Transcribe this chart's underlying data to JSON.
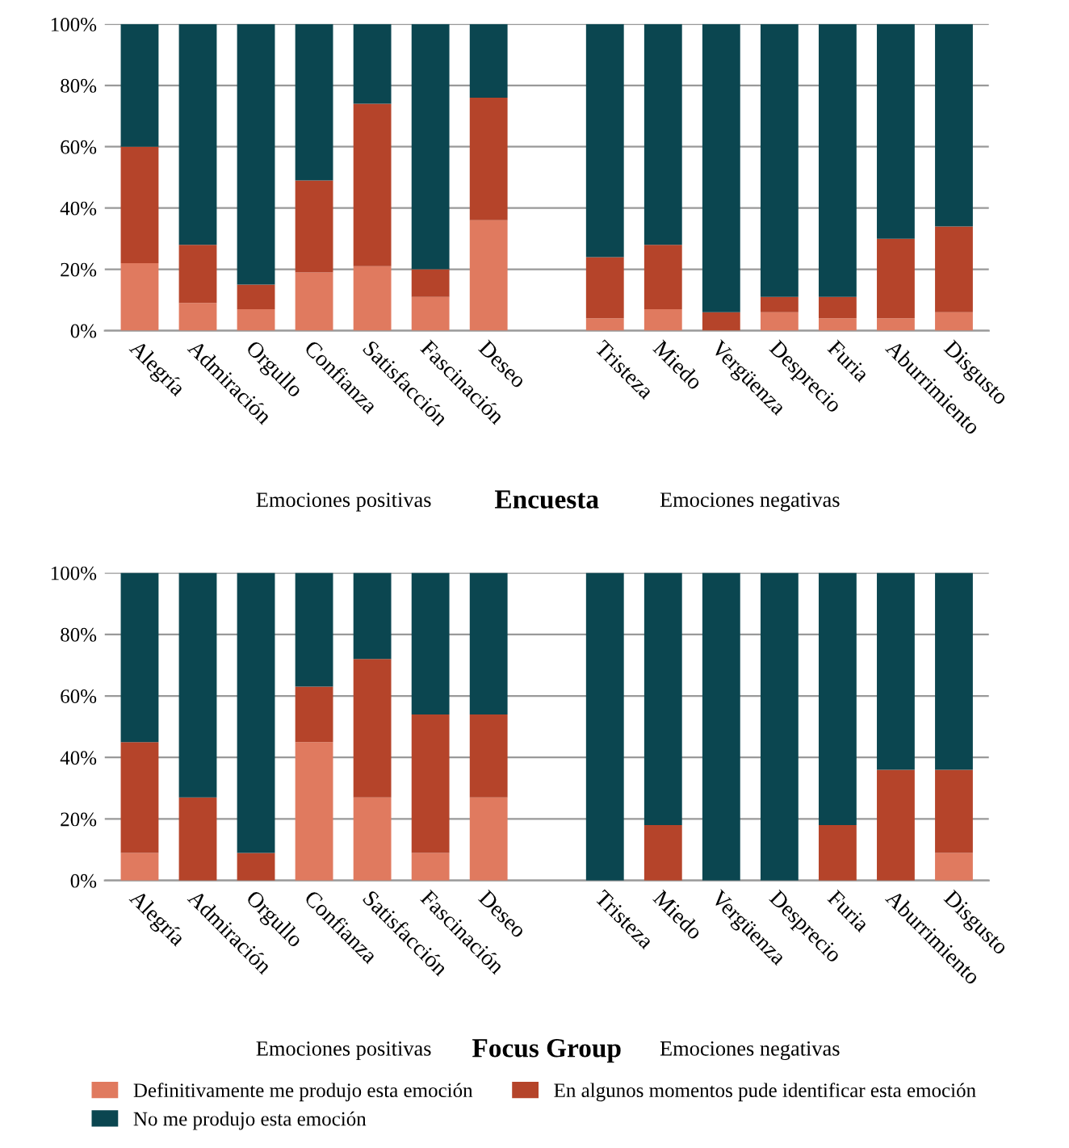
{
  "chart_data": [
    {
      "type": "bar",
      "stacked": true,
      "title": "Encuesta",
      "annotations": [
        "Emociones positivas",
        "Emociones negativas"
      ],
      "categories": [
        "Alegría",
        "Admiración",
        "Orgullo",
        "Confianza",
        "Satisfacción",
        "Fascinación",
        "Deseo",
        null,
        "Tristeza",
        "Miedo",
        "Vergüenza",
        "Desprecio",
        "Furia",
        "Aburrimiento",
        "Disgusto"
      ],
      "series": [
        {
          "color": "#e07a5f",
          "values": [
            22,
            9,
            7,
            19,
            21,
            11,
            36,
            null,
            4,
            7,
            0,
            6,
            4,
            4,
            6
          ]
        },
        {
          "color": "#b5442a",
          "values": [
            38,
            19,
            8,
            30,
            53,
            9,
            40,
            null,
            20,
            21,
            6,
            5,
            7,
            26,
            28
          ]
        },
        {
          "color": "#0b4650",
          "values": [
            40,
            72,
            85,
            51,
            26,
            80,
            24,
            null,
            76,
            72,
            94,
            89,
            89,
            70,
            66
          ]
        }
      ],
      "ylim": [
        0,
        100
      ],
      "yticks": [
        {
          "value": 0,
          "label": "0%"
        },
        {
          "value": 20,
          "label": "20%"
        },
        {
          "value": 40,
          "label": "40%"
        },
        {
          "value": 60,
          "label": "60%"
        },
        {
          "value": 80,
          "label": "80%"
        },
        {
          "value": 100,
          "label": "100%"
        }
      ],
      "grid": "y"
    },
    {
      "type": "bar",
      "stacked": true,
      "title": "Focus Group",
      "annotations": [
        "Emociones positivas",
        "Emociones negativas"
      ],
      "categories": [
        "Alegría",
        "Admiración",
        "Orgullo",
        "Confianza",
        "Satisfacción",
        "Fascinación",
        "Deseo",
        null,
        "Tristeza",
        "Miedo",
        "Vergüenza",
        "Desprecio",
        "Furia",
        "Aburrimiento",
        "Disgusto"
      ],
      "series": [
        {
          "name": "Definitivamente me produjo esta emoción",
          "color": "#e07a5f",
          "values": [
            9,
            0,
            0,
            45,
            27,
            9,
            27,
            null,
            0,
            0,
            0,
            0,
            0,
            0,
            9
          ]
        },
        {
          "name": "En algunos momentos pude identificar esta emoción",
          "color": "#b5442a",
          "values": [
            36,
            27,
            9,
            18,
            45,
            45,
            27,
            null,
            0,
            18,
            0,
            0,
            18,
            36,
            27
          ]
        },
        {
          "name": "No me produjo esta emoción",
          "color": "#0b4650",
          "values": [
            55,
            73,
            91,
            37,
            28,
            46,
            46,
            null,
            100,
            82,
            100,
            100,
            82,
            64,
            64
          ]
        }
      ],
      "ylim": [
        0,
        100
      ],
      "yticks": [
        {
          "value": 0,
          "label": "0%"
        },
        {
          "value": 20,
          "label": "20%"
        },
        {
          "value": 40,
          "label": "40%"
        },
        {
          "value": 60,
          "label": "60%"
        },
        {
          "value": 80,
          "label": "80%"
        },
        {
          "value": 100,
          "label": "100%"
        }
      ],
      "grid": "y",
      "legend": "bottom"
    }
  ]
}
